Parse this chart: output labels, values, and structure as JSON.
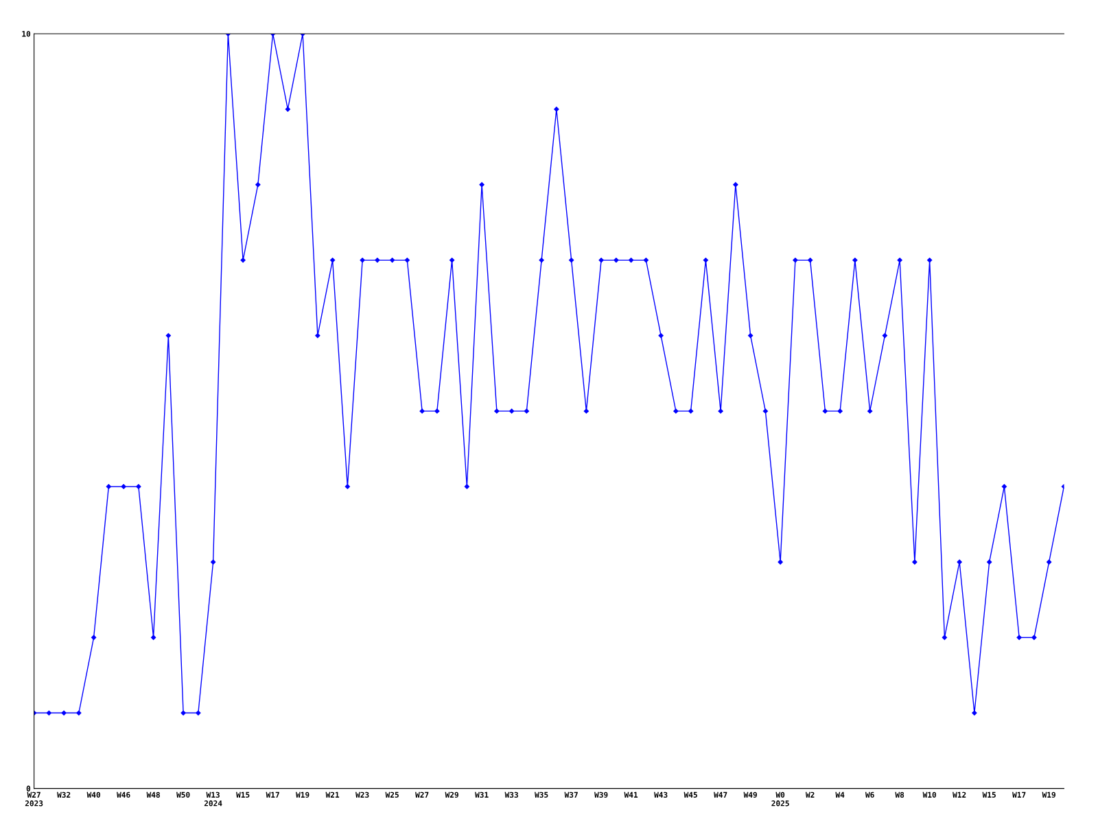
{
  "chart_data": {
    "type": "line",
    "categories": [
      "W27\n2023",
      null,
      "W32",
      null,
      "W40",
      null,
      "W46",
      null,
      "W48",
      null,
      "W50",
      null,
      "W13\n2024",
      null,
      "W15",
      null,
      "W17",
      null,
      "W19",
      null,
      "W21",
      null,
      "W23",
      null,
      "W25",
      null,
      "W27",
      null,
      "W29",
      null,
      "W31",
      null,
      "W33",
      null,
      "W35",
      null,
      "W37",
      null,
      "W39",
      null,
      "W41",
      null,
      "W43",
      null,
      "W45",
      null,
      "W47",
      null,
      "W49",
      null,
      "W0\n2025",
      null,
      "W2",
      null,
      "W4",
      null,
      "W6",
      null,
      "W8",
      null,
      "W10",
      null,
      "W12",
      null,
      "W15",
      null,
      "W17",
      null,
      "W19",
      null
    ],
    "series": [
      {
        "color": "#0000ff",
        "values": [
          1,
          1,
          1,
          1,
          2,
          4,
          4,
          4,
          2,
          6,
          1,
          1,
          3,
          10,
          7,
          8,
          10,
          9,
          10,
          6,
          7,
          4,
          7,
          7,
          7,
          7,
          5,
          5,
          7,
          4,
          8,
          5,
          5,
          5,
          7,
          9,
          7,
          5,
          7,
          7,
          7,
          7,
          6,
          5,
          5,
          7,
          5,
          8,
          6,
          5,
          3,
          7,
          7,
          5,
          5,
          7,
          5,
          6,
          7,
          3,
          7,
          2,
          3,
          1,
          3,
          4,
          2,
          2,
          3,
          4
        ]
      }
    ],
    "ylim": [
      0,
      10
    ],
    "yticks": [
      0,
      10
    ],
    "grid": false,
    "marker": "diamond",
    "line_style": "solid"
  }
}
